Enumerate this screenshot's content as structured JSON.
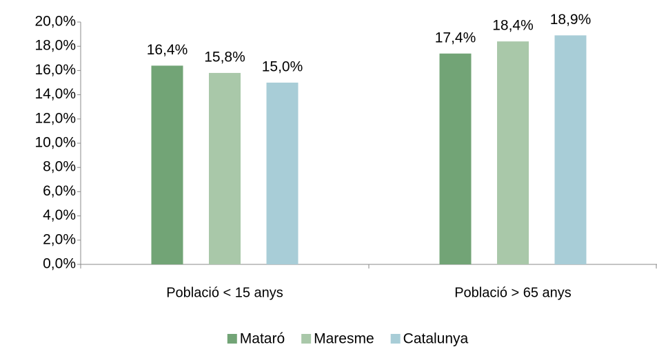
{
  "chart_data": {
    "type": "bar",
    "categories": [
      "Població < 15 anys",
      "Població > 65 anys"
    ],
    "series": [
      {
        "name": "Mataró",
        "color": "#72a476",
        "values": [
          16.4,
          17.4
        ],
        "value_labels": [
          "16,4%",
          "17,4%"
        ]
      },
      {
        "name": "Maresme",
        "color": "#a9c8a9",
        "values": [
          15.8,
          18.4
        ],
        "value_labels": [
          "15,8%",
          "18,4%"
        ]
      },
      {
        "name": "Catalunya",
        "color": "#a8cdd7",
        "values": [
          15.0,
          18.9
        ],
        "value_labels": [
          "15,0%",
          "18,9%"
        ]
      }
    ],
    "ylim": [
      0,
      20
    ],
    "yticks": [
      {
        "value": 0,
        "label": "0,0%"
      },
      {
        "value": 2,
        "label": "2,0%"
      },
      {
        "value": 4,
        "label": "4,0%"
      },
      {
        "value": 6,
        "label": "6,0%"
      },
      {
        "value": 8,
        "label": "8,0%"
      },
      {
        "value": 10,
        "label": "10,0%"
      },
      {
        "value": 12,
        "label": "12,0%"
      },
      {
        "value": 14,
        "label": "14,0%"
      },
      {
        "value": 16,
        "label": "16,0%"
      },
      {
        "value": 18,
        "label": "18,0%"
      },
      {
        "value": 20,
        "label": "20,0%"
      }
    ],
    "legend": "bottom"
  }
}
